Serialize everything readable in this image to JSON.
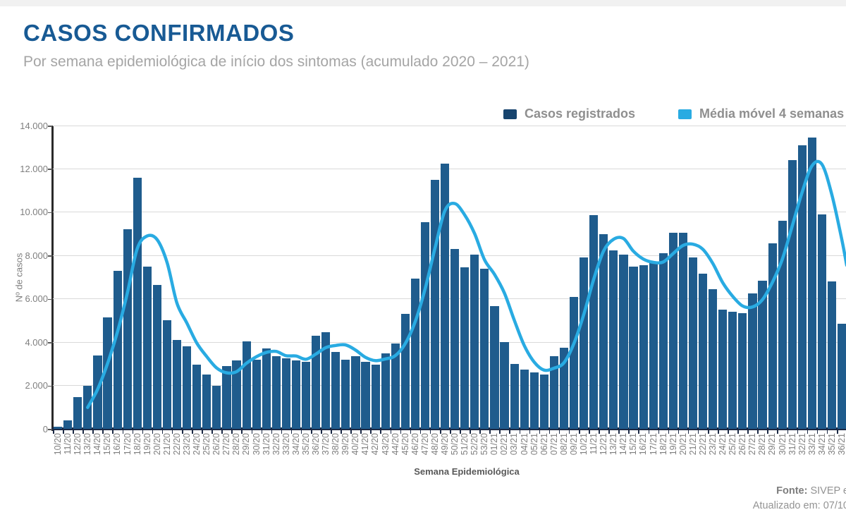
{
  "header": {
    "title": "CASOS CONFIRMADOS",
    "subtitle": "Por semana epidemiológica de início dos sintomas (acumulado 2020 – 2021)"
  },
  "footer": {
    "source_label": "Fonte:",
    "source_text": " SIVEP e",
    "updated_text": "Atualizado em: 07/10"
  },
  "colors": {
    "title": "#185a94",
    "bar": "#1f5c8d",
    "legend_bar_swatch": "#17446e",
    "line": "#29abe2",
    "grid": "#d9d9d9",
    "axis": "#1b2944",
    "tick_text": "#7f7f7f"
  },
  "chart_data": {
    "type": "bar",
    "title": "CASOS CONFIRMADOS",
    "subtitle": "Por semana epidemiológica de início dos sintomas (acumulado 2020 – 2021)",
    "xlabel": "Semana Epidemiológica",
    "ylabel": "Nº de casos",
    "ylim": [
      0,
      14000
    ],
    "yticks": [
      0,
      2000,
      4000,
      6000,
      8000,
      10000,
      12000,
      14000
    ],
    "ytick_labels": [
      "0",
      "2.000",
      "4.000",
      "6.000",
      "8.000",
      "10.000",
      "12.000",
      "14.000"
    ],
    "grid": true,
    "legend_position": "top-right",
    "categories": [
      "10/20",
      "11/20",
      "12/20",
      "13/20",
      "14/20",
      "15/20",
      "16/20",
      "17/20",
      "18/20",
      "19/20",
      "20/20",
      "21/20",
      "22/20",
      "23/20",
      "24/20",
      "25/20",
      "26/20",
      "27/20",
      "28/20",
      "29/20",
      "30/20",
      "31/20",
      "32/20",
      "33/20",
      "34/20",
      "35/20",
      "36/20",
      "37/20",
      "38/20",
      "39/20",
      "40/20",
      "41/20",
      "42/20",
      "43/20",
      "44/20",
      "45/20",
      "46/20",
      "47/20",
      "48/20",
      "49/20",
      "50/20",
      "51/20",
      "52/20",
      "53/20",
      "01/21",
      "02/21",
      "03/21",
      "04/21",
      "05/21",
      "06/21",
      "07/21",
      "08/21",
      "09/21",
      "10/21",
      "11/21",
      "12/21",
      "13/21",
      "14/21",
      "15/21",
      "16/21",
      "17/21",
      "18/21",
      "19/21",
      "20/21",
      "21/21",
      "22/21",
      "23/21",
      "24/21",
      "25/21",
      "26/21",
      "27/21",
      "28/21",
      "29/21",
      "30/21",
      "31/21",
      "32/21",
      "33/21",
      "34/21",
      "35/21",
      "36/21"
    ],
    "series": [
      {
        "name": "Casos registrados",
        "type": "bar",
        "values": [
          100,
          400,
          1450,
          2000,
          3400,
          5150,
          7300,
          9200,
          11600,
          7500,
          6650,
          5000,
          4100,
          3800,
          2950,
          2500,
          2000,
          2900,
          3150,
          4050,
          3200,
          3700,
          3350,
          3250,
          3150,
          3100,
          4300,
          4450,
          3550,
          3200,
          3350,
          3100,
          2950,
          3500,
          3950,
          5300,
          6950,
          9550,
          11500,
          12250,
          8300,
          7450,
          8050,
          7400,
          5650,
          4000,
          3000,
          2750,
          2600,
          2500,
          3350,
          3750,
          6100,
          7900,
          9850,
          9000,
          8250,
          8050,
          7500,
          7550,
          7650,
          8100,
          9050,
          9050,
          7900,
          7150,
          6450,
          5500,
          5400,
          5350,
          6250,
          6850,
          8550,
          9600,
          12400,
          13100,
          13450,
          9900,
          6800,
          4850
        ]
      },
      {
        "name": "Média móvel 4 semanas",
        "type": "line",
        "values": [
          null,
          null,
          null,
          988,
          1813,
          3000,
          4463,
          6263,
          8313,
          8900,
          8738,
          7688,
          5813,
          4888,
          3963,
          3338,
          2813,
          2588,
          2638,
          3025,
          3325,
          3525,
          3575,
          3375,
          3363,
          3213,
          3450,
          3750,
          3850,
          3875,
          3638,
          3300,
          3150,
          3225,
          3375,
          3925,
          4925,
          6438,
          8325,
          10063,
          10400,
          9875,
          9013,
          7800,
          7138,
          6275,
          5013,
          3850,
          3088,
          2713,
          2800,
          3050,
          3925,
          5275,
          6900,
          8213,
          8750,
          8788,
          8200,
          7838,
          7688,
          7700,
          8088,
          8463,
          8525,
          8288,
          7638,
          6750,
          6125,
          5675,
          5625,
          5963,
          6750,
          7813,
          9350,
          10913,
          12138,
          12213,
          10813,
          8750
        ]
      }
    ],
    "line_edge_value": 7550
  }
}
